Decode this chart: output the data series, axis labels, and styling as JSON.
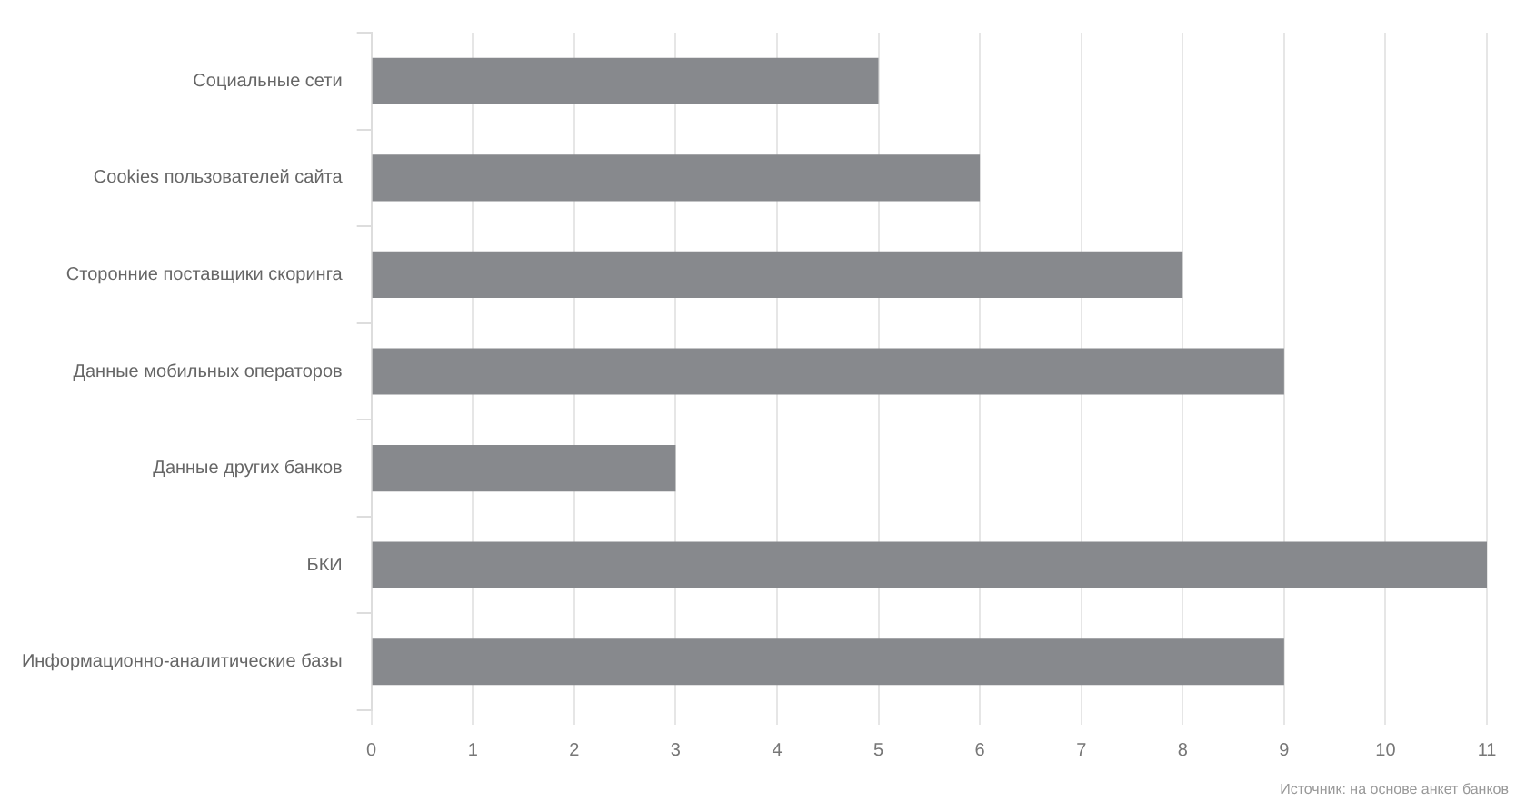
{
  "chart_data": {
    "type": "bar",
    "orientation": "horizontal",
    "categories": [
      "Социальные сети",
      "Cookies пользователей сайта",
      "Сторонние поставщики скоринга",
      "Данные мобильных операторов",
      "Данные других банков",
      "БКИ",
      "Информационно-аналитические базы"
    ],
    "values": [
      5,
      6,
      8,
      9,
      3,
      11,
      9
    ],
    "color": "#87898d",
    "xlim": [
      0,
      11
    ],
    "xticks": [
      0,
      1,
      2,
      3,
      4,
      5,
      6,
      7,
      8,
      9,
      10,
      11
    ],
    "grid": "x",
    "legend": false,
    "annotations": [
      "Источник: на основе анкет банков"
    ]
  }
}
